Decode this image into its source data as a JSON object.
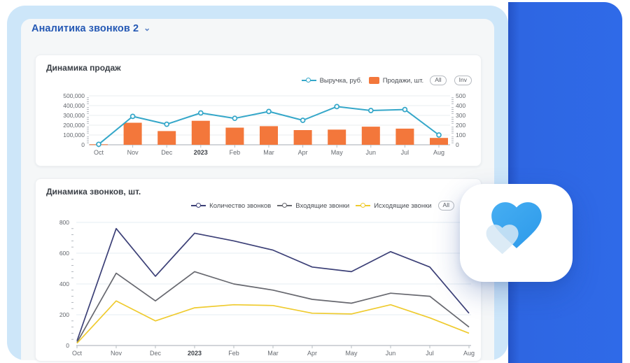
{
  "header": {
    "title": "Аналитика звонков 2",
    "chevron": "⌄"
  },
  "colors": {
    "panel_light_blue": "#CDE6F9",
    "accent_blue": "#2F66E2",
    "header_text": "#2458B4",
    "teal": "#35A7C9",
    "orange": "#F3773B",
    "navy": "#3C4077",
    "gray_line": "#67686F",
    "yellow": "#EFCB2F",
    "heart_blue": "#33A2EE",
    "heart_light": "#D6E7F4"
  },
  "chart_data": [
    {
      "type": "combo-bar-line",
      "title": "Динамика продаж",
      "categories": [
        "Oct",
        "Nov",
        "Dec",
        "2023",
        "Feb",
        "Mar",
        "Apr",
        "May",
        "Jun",
        "Jul",
        "Aug"
      ],
      "bold_category": "2023",
      "series": [
        {
          "name": "Выручка, руб.",
          "kind": "line",
          "axis": "left",
          "color": "#35A7C9",
          "values": [
            5000,
            290000,
            210000,
            325000,
            270000,
            340000,
            250000,
            390000,
            350000,
            360000,
            100000
          ]
        },
        {
          "name": "Продажи, шт.",
          "kind": "bar",
          "axis": "right",
          "color": "#F3773B",
          "values": [
            5,
            225,
            140,
            245,
            175,
            190,
            150,
            155,
            185,
            165,
            70
          ]
        }
      ],
      "left_axis": {
        "min": 0,
        "max": 500000,
        "step": 100000,
        "labels": [
          "500,000",
          "400,000",
          "300,000",
          "200,000",
          "100,000",
          "0"
        ]
      },
      "right_axis": {
        "min": 0,
        "max": 500,
        "step": 100,
        "labels": [
          "500",
          "400",
          "300",
          "200",
          "100",
          "0"
        ]
      },
      "buttons": [
        "All",
        "Inv"
      ]
    },
    {
      "type": "line",
      "title": "Динамика звонков, шт.",
      "categories": [
        "Oct",
        "Nov",
        "Dec",
        "2023",
        "Feb",
        "Mar",
        "Apr",
        "May",
        "Jun",
        "Jul",
        "Aug"
      ],
      "bold_category": "2023",
      "series": [
        {
          "name": "Количество звонков",
          "kind": "line",
          "color": "#3C4077",
          "values": [
            30,
            760,
            450,
            730,
            680,
            620,
            510,
            480,
            610,
            510,
            210
          ]
        },
        {
          "name": "Входящие звонки",
          "kind": "line",
          "color": "#67686F",
          "values": [
            20,
            470,
            290,
            480,
            400,
            360,
            300,
            275,
            340,
            320,
            120
          ]
        },
        {
          "name": "Исходящие звонки",
          "kind": "line",
          "color": "#EFCB2F",
          "values": [
            15,
            290,
            160,
            245,
            265,
            260,
            210,
            205,
            265,
            180,
            80
          ]
        }
      ],
      "y_axis": {
        "min": 0,
        "max": 800,
        "step": 200,
        "labels": [
          "800",
          "600",
          "400",
          "200",
          "0"
        ]
      },
      "buttons": [
        "All"
      ]
    }
  ]
}
